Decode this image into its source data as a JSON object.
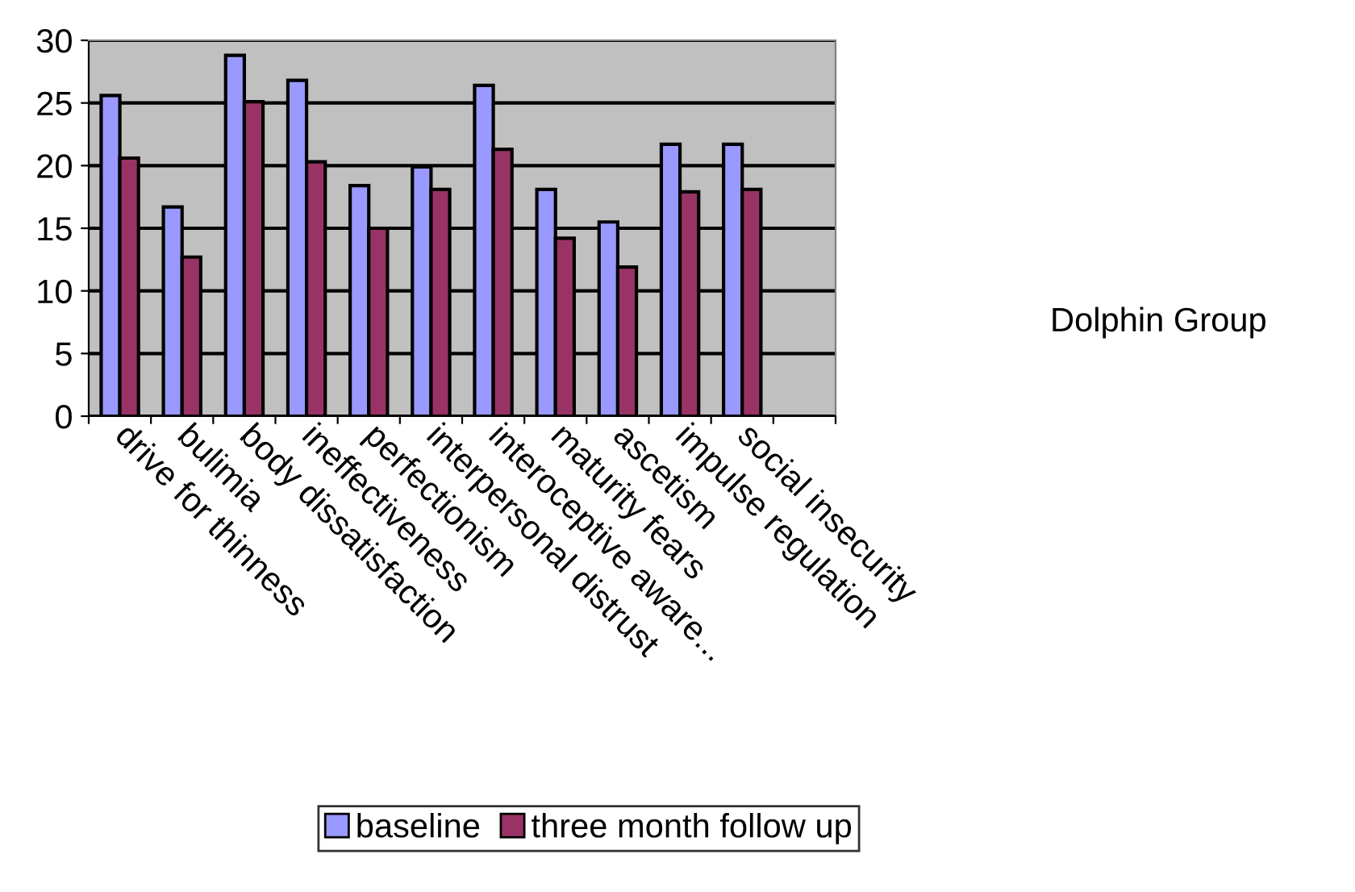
{
  "chart_data": {
    "type": "bar",
    "categories": [
      "drive for thinness",
      "bulimia",
      "body dissatisfaction",
      "ineffectiveness",
      "perfectionism",
      "interpersonal distrust",
      "interoceptive aware...",
      "maturity fears",
      "ascetism",
      "impulse regulation",
      "social insecurity",
      null
    ],
    "series": [
      {
        "name": "baseline",
        "color": "#9999ff",
        "values": [
          25.6,
          16.7,
          28.8,
          26.8,
          18.4,
          19.9,
          26.4,
          18.1,
          15.5,
          21.7,
          21.7,
          null
        ]
      },
      {
        "name": "three month follow up",
        "color": "#993366",
        "values": [
          20.6,
          12.7,
          25.1,
          20.3,
          15.0,
          18.1,
          21.3,
          14.2,
          11.9,
          17.9,
          18.1,
          null
        ]
      }
    ],
    "ylim": [
      0,
      30
    ],
    "yticks": [
      0,
      5,
      10,
      15,
      20,
      25,
      30
    ],
    "grid": "y",
    "legend": "bottom",
    "annotations": [
      "Dolphin Group"
    ]
  }
}
